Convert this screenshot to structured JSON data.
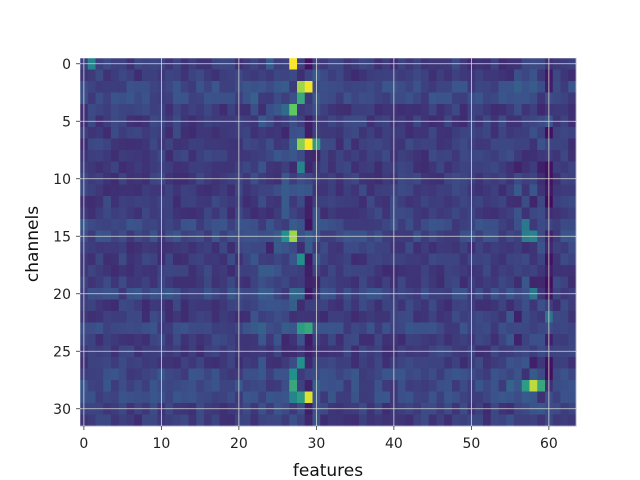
{
  "chart_data": {
    "type": "heatmap",
    "colormap": "viridis",
    "xlabel": "features",
    "ylabel": "channels",
    "x_range": [
      0,
      63
    ],
    "y_range": [
      0,
      31
    ],
    "y_axis_inverted": true,
    "grid": true,
    "grid_color": "#d8d8d8",
    "x_ticks": [
      0,
      10,
      20,
      30,
      40,
      50,
      60
    ],
    "y_ticks": [
      0,
      5,
      10,
      15,
      20,
      25,
      30
    ],
    "x_tick_labels": [
      "0",
      "10",
      "20",
      "30",
      "40",
      "50",
      "60"
    ],
    "y_tick_labels": [
      "0",
      "5",
      "10",
      "15",
      "20",
      "25",
      "30"
    ],
    "n_rows": 32,
    "n_cols": 64,
    "baseline_intensity": 0.18,
    "hot_cells": [
      {
        "channel": 0,
        "feature": 27,
        "value": 1.0
      },
      {
        "channel": 0,
        "feature": 1,
        "value": 0.45
      },
      {
        "channel": 2,
        "feature": 28,
        "value": 0.85
      },
      {
        "channel": 2,
        "feature": 29,
        "value": 0.98
      },
      {
        "channel": 3,
        "feature": 28,
        "value": 0.6
      },
      {
        "channel": 4,
        "feature": 27,
        "value": 0.75
      },
      {
        "channel": 4,
        "feature": 26,
        "value": 0.35
      },
      {
        "channel": 7,
        "feature": 28,
        "value": 0.82
      },
      {
        "channel": 7,
        "feature": 29,
        "value": 1.0
      },
      {
        "channel": 7,
        "feature": 30,
        "value": 0.55
      },
      {
        "channel": 9,
        "feature": 28,
        "value": 0.45
      },
      {
        "channel": 15,
        "feature": 27,
        "value": 0.85
      },
      {
        "channel": 15,
        "feature": 26,
        "value": 0.5
      },
      {
        "channel": 15,
        "feature": 58,
        "value": 0.45
      },
      {
        "channel": 15,
        "feature": 57,
        "value": 0.42
      },
      {
        "channel": 14,
        "feature": 57,
        "value": 0.4
      },
      {
        "channel": 17,
        "feature": 28,
        "value": 0.5
      },
      {
        "channel": 23,
        "feature": 28,
        "value": 0.55
      },
      {
        "channel": 23,
        "feature": 29,
        "value": 0.6
      },
      {
        "channel": 26,
        "feature": 28,
        "value": 0.5
      },
      {
        "channel": 27,
        "feature": 27,
        "value": 0.5
      },
      {
        "channel": 28,
        "feature": 27,
        "value": 0.6
      },
      {
        "channel": 28,
        "feature": 58,
        "value": 0.9
      },
      {
        "channel": 28,
        "feature": 57,
        "value": 0.55
      },
      {
        "channel": 28,
        "feature": 59,
        "value": 0.6
      },
      {
        "channel": 29,
        "feature": 29,
        "value": 0.95
      },
      {
        "channel": 29,
        "feature": 28,
        "value": 0.55
      },
      {
        "channel": 29,
        "feature": 27,
        "value": 0.45
      },
      {
        "channel": 20,
        "feature": 58,
        "value": 0.4
      },
      {
        "channel": 22,
        "feature": 60,
        "value": 0.38
      }
    ],
    "low_columns": [
      {
        "feature": 60,
        "value": 0.02
      },
      {
        "feature": 29,
        "value": 0.05
      }
    ]
  }
}
